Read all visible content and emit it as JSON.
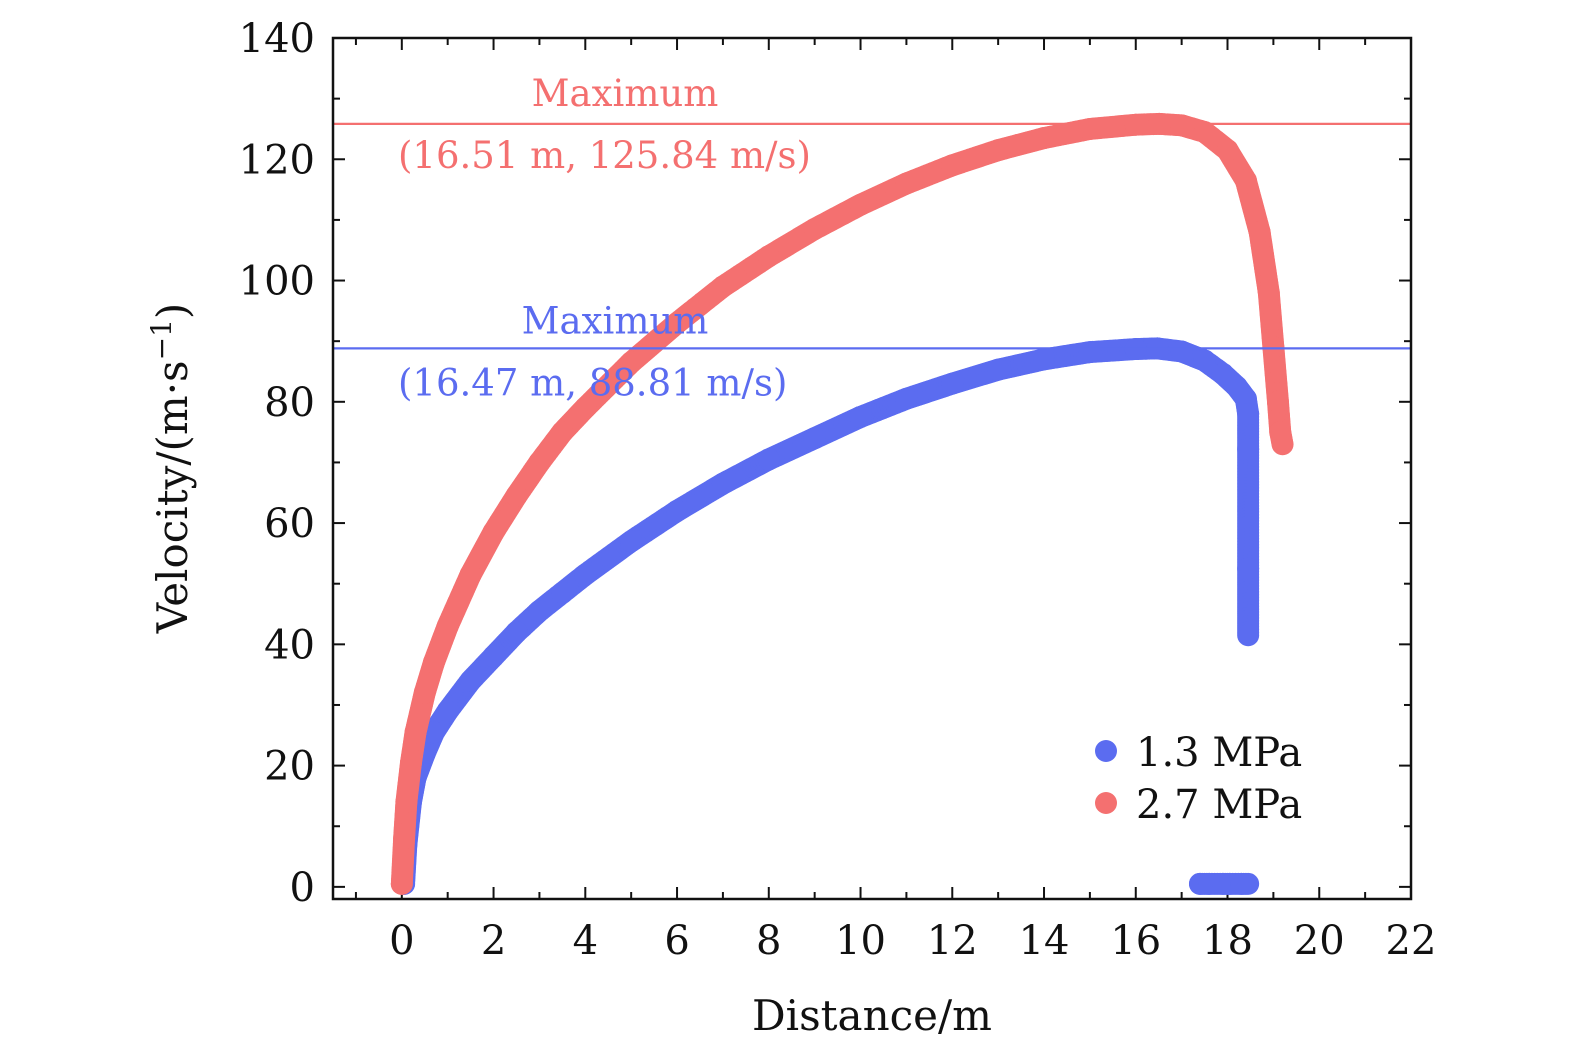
{
  "chart_data": {
    "type": "scatter",
    "xlabel": "Distance/m",
    "ylabel_main": "Velocity/(m·s",
    "ylabel_sup": "−1",
    "ylabel_close": ")",
    "xlim": [
      -1.5,
      22
    ],
    "ylim": [
      -2,
      140
    ],
    "xticks": [
      0,
      2,
      4,
      6,
      8,
      10,
      12,
      14,
      16,
      18,
      20,
      22
    ],
    "xtick_labels": [
      "0",
      "2",
      "4",
      "6",
      "8",
      "10",
      "12",
      "14",
      "16",
      "18",
      "20",
      "22"
    ],
    "yticks": [
      0,
      20,
      40,
      60,
      80,
      100,
      120,
      140
    ],
    "ytick_labels": [
      "0",
      "20",
      "40",
      "60",
      "80",
      "100",
      "120",
      "140"
    ],
    "grid": false,
    "legend_position": "bottom-right",
    "series": [
      {
        "name": "1.3 MPa",
        "color": "#5b6cf0",
        "points": [
          [
            0.05,
            0.5
          ],
          [
            0.1,
            7
          ],
          [
            0.2,
            14
          ],
          [
            0.3,
            18
          ],
          [
            0.5,
            22
          ],
          [
            0.7,
            25.5
          ],
          [
            1.0,
            29
          ],
          [
            1.5,
            34
          ],
          [
            2.0,
            38
          ],
          [
            2.5,
            42
          ],
          [
            3.0,
            45.5
          ],
          [
            3.5,
            48.5
          ],
          [
            4.0,
            51.5
          ],
          [
            5.0,
            57
          ],
          [
            6.0,
            62
          ],
          [
            7.0,
            66.5
          ],
          [
            8.0,
            70.5
          ],
          [
            9.0,
            74
          ],
          [
            10.0,
            77.5
          ],
          [
            11.0,
            80.5
          ],
          [
            12.0,
            83
          ],
          [
            13.0,
            85.3
          ],
          [
            14.0,
            87
          ],
          [
            15.0,
            88.2
          ],
          [
            16.0,
            88.7
          ],
          [
            16.47,
            88.81
          ],
          [
            17.0,
            88.3
          ],
          [
            17.5,
            86.8
          ],
          [
            17.9,
            84.6
          ],
          [
            18.2,
            82.5
          ],
          [
            18.4,
            80.5
          ],
          [
            18.45,
            78
          ],
          [
            18.45,
            72.2
          ],
          [
            18.45,
            52.5
          ],
          [
            18.45,
            41.5
          ],
          [
            17.4,
            0.5
          ],
          [
            17.6,
            0.5
          ],
          [
            17.9,
            0.5
          ],
          [
            18.05,
            0.5
          ],
          [
            18.3,
            0.5
          ],
          [
            18.45,
            0.5
          ]
        ]
      },
      {
        "name": "2.7 MPa",
        "color": "#f47070",
        "points": [
          [
            0.0,
            0.5
          ],
          [
            0.05,
            8
          ],
          [
            0.1,
            14
          ],
          [
            0.2,
            20.5
          ],
          [
            0.3,
            25.5
          ],
          [
            0.5,
            32
          ],
          [
            0.7,
            37
          ],
          [
            1.0,
            43
          ],
          [
            1.5,
            51.5
          ],
          [
            2.0,
            58.5
          ],
          [
            2.5,
            64.5
          ],
          [
            3.0,
            70
          ],
          [
            3.5,
            75
          ],
          [
            4.0,
            79
          ],
          [
            5.0,
            86.5
          ],
          [
            6.0,
            93
          ],
          [
            7.0,
            99
          ],
          [
            8.0,
            104
          ],
          [
            9.0,
            108.5
          ],
          [
            10.0,
            112.5
          ],
          [
            11.0,
            116
          ],
          [
            12.0,
            119
          ],
          [
            13.0,
            121.5
          ],
          [
            14.0,
            123.5
          ],
          [
            15.0,
            125
          ],
          [
            16.0,
            125.7
          ],
          [
            16.51,
            125.84
          ],
          [
            17.0,
            125.6
          ],
          [
            17.5,
            124.5
          ],
          [
            18.0,
            121.5
          ],
          [
            18.4,
            116.5
          ],
          [
            18.7,
            108
          ],
          [
            18.9,
            98
          ],
          [
            19.0,
            89
          ],
          [
            19.1,
            80
          ],
          [
            19.15,
            75
          ],
          [
            19.2,
            73
          ]
        ]
      }
    ],
    "annotations": [
      {
        "label": "Maximum",
        "coords": "(16.51 m, 125.84 m/s)",
        "y": 125.84,
        "color": "#f47070"
      },
      {
        "label": "Maximum",
        "coords": "(16.47 m, 88.81 m/s)",
        "y": 88.81,
        "color": "#5b6cf0"
      }
    ]
  }
}
